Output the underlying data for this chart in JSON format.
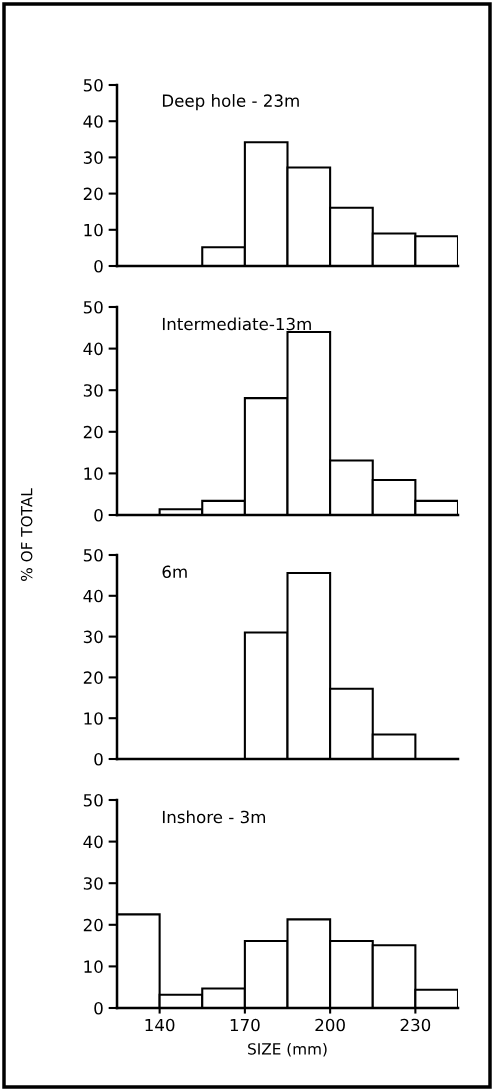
{
  "chart_data": [
    {
      "type": "histogram",
      "title": "Deep hole - 23m",
      "bins": [
        155,
        170,
        185,
        200,
        215,
        230,
        245
      ],
      "values": [
        5.2,
        34.2,
        27.2,
        16.1,
        9.0,
        8.2
      ],
      "color": "#ffffff",
      "xlim": [
        125,
        245
      ],
      "xticks": [
        140,
        170,
        200,
        230
      ],
      "ylim": [
        0,
        50
      ],
      "yticks": [
        0,
        10,
        20,
        30,
        40,
        50
      ],
      "tick_labels": "y"
    },
    {
      "type": "histogram",
      "title": "Intermediate-13m",
      "ylabel": "% OF TOTAL",
      "bins": [
        140,
        155,
        170,
        185,
        200,
        215,
        230,
        245
      ],
      "values": [
        1.4,
        3.4,
        28.1,
        44.0,
        13.1,
        8.4,
        3.4
      ],
      "color": "#ffffff",
      "xlim": [
        125,
        245
      ],
      "xticks": [
        140,
        170,
        200,
        230
      ],
      "ylim": [
        0,
        50
      ],
      "yticks": [
        0,
        10,
        20,
        30,
        40,
        50
      ],
      "tick_labels": "y"
    },
    {
      "type": "histogram",
      "title": "6m",
      "bins": [
        170,
        185,
        200,
        215,
        230
      ],
      "values": [
        31.0,
        45.6,
        17.2,
        6.0
      ],
      "color": "#ffffff",
      "xlim": [
        125,
        245
      ],
      "xticks": [
        140,
        170,
        200,
        230
      ],
      "ylim": [
        0,
        50
      ],
      "yticks": [
        0,
        10,
        20,
        30,
        40,
        50
      ],
      "tick_labels": "y"
    },
    {
      "type": "histogram",
      "title": "Inshore - 3m",
      "xlabel": "SIZE (mm)",
      "bins": [
        125,
        140,
        155,
        170,
        185,
        200,
        215,
        230,
        245
      ],
      "values": [
        22.5,
        3.2,
        4.7,
        16.1,
        21.3,
        16.1,
        15.1,
        4.4
      ],
      "color": "#ffffff",
      "xlim": [
        125,
        245
      ],
      "xticks": [
        140,
        170,
        200,
        230
      ],
      "ylim": [
        0,
        50
      ],
      "yticks": [
        0,
        10,
        20,
        30,
        40,
        50
      ]
    }
  ]
}
